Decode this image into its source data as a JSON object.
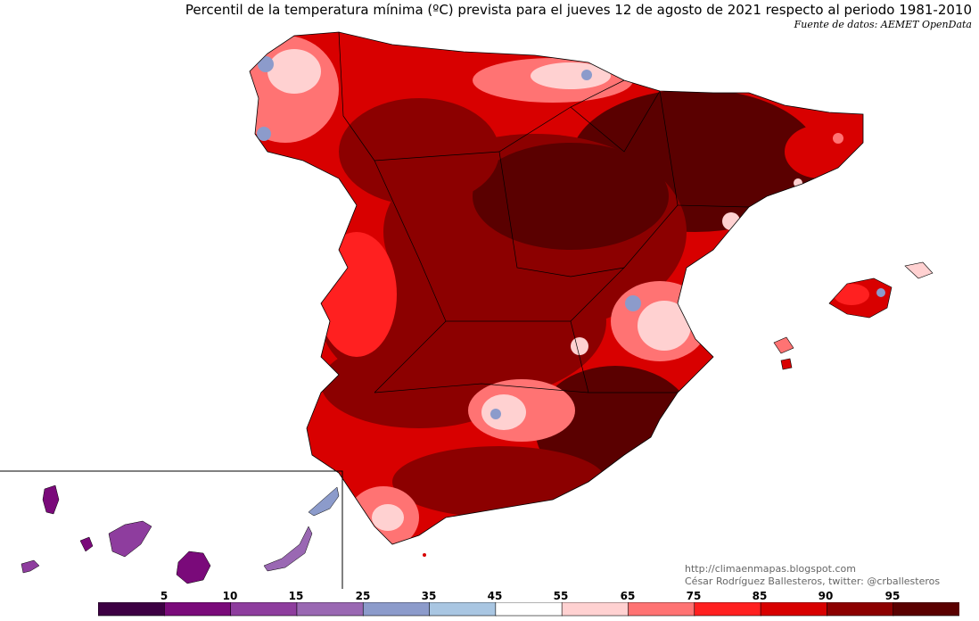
{
  "header": {
    "title": "Percentil de la temperatura mínima (ºC) prevista para el jueves 12 de agosto de 2021 respecto al periodo 1981-2010",
    "source": "Fuente de datos: AEMET OpenData"
  },
  "credits": {
    "blog": "http://climaenmapas.blogspot.com",
    "author": "César Rodríguez Ballesteros, twitter: @crballesteros"
  },
  "colorbar": {
    "labels": [
      "5",
      "10",
      "15",
      "25",
      "35",
      "45",
      "55",
      "65",
      "75",
      "85",
      "90",
      "95"
    ],
    "colors": [
      "#3d0043",
      "#7a0a7a",
      "#8e3d9e",
      "#9a68b3",
      "#8c9bcb",
      "#a9c6e2",
      "#ffffff",
      "#ffd1d1",
      "#ff7373",
      "#ff2020",
      "#d80000",
      "#8c0000",
      "#5a0000"
    ]
  },
  "map": {
    "regions": [
      "peninsula",
      "baleares",
      "canarias",
      "ceuta",
      "melilla"
    ],
    "colors": {
      "very_high": "#5a0000",
      "high": "#8c0000",
      "elevated": "#d80000",
      "moderate": "#ff2020",
      "mild": "#ff7373",
      "normal": "#ffd1d1",
      "low": "#8c9bcb",
      "very_low": "#7a0a7a"
    }
  }
}
